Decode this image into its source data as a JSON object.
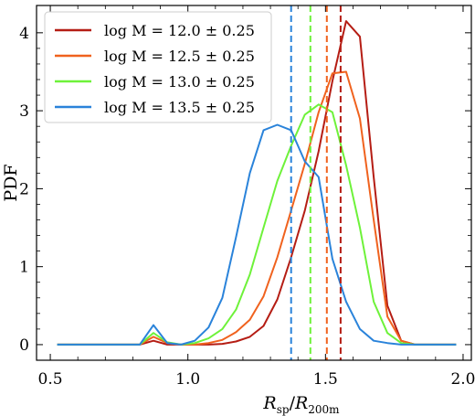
{
  "chart_data": {
    "type": "line",
    "xlabel": "R_sp/R_200m",
    "ylabel": "PDF",
    "xlim": [
      0.45,
      2.03
    ],
    "ylim": [
      -0.2,
      4.35
    ],
    "xticks": [
      0.5,
      1.0,
      1.5,
      2.0
    ],
    "xtick_labels": [
      "0.5",
      "1.0",
      "1.5",
      "2.0"
    ],
    "yticks": [
      0,
      1,
      2,
      3,
      4
    ],
    "ytick_labels": [
      "0",
      "1",
      "2",
      "3",
      "4"
    ],
    "legend_position": "top-left",
    "grid": false,
    "x": [
      0.525,
      0.575,
      0.625,
      0.675,
      0.725,
      0.775,
      0.825,
      0.875,
      0.925,
      0.975,
      1.025,
      1.075,
      1.125,
      1.175,
      1.225,
      1.275,
      1.325,
      1.375,
      1.425,
      1.475,
      1.525,
      1.575,
      1.625,
      1.675,
      1.725,
      1.775,
      1.825,
      1.875,
      1.925,
      1.975
    ],
    "series": [
      {
        "name": "log M = 12.0 ± 0.25",
        "color": "#b51d14",
        "values": [
          0,
          0,
          0,
          0,
          0,
          0,
          0,
          0.05,
          0,
          0,
          0,
          0,
          0.01,
          0.04,
          0.1,
          0.24,
          0.58,
          1.12,
          1.72,
          2.48,
          3.38,
          4.15,
          3.95,
          2.15,
          0.5,
          0.05,
          0,
          0,
          0,
          0
        ],
        "vline": 1.555
      },
      {
        "name": "log M = 12.5 ± 0.25",
        "color": "#f0621e",
        "values": [
          0,
          0,
          0,
          0,
          0,
          0,
          0,
          0.1,
          0.02,
          0,
          0,
          0.02,
          0.06,
          0.16,
          0.32,
          0.62,
          1.12,
          1.72,
          2.32,
          2.98,
          3.48,
          3.5,
          2.9,
          1.6,
          0.36,
          0.05,
          0,
          0,
          0,
          0
        ],
        "vline": 1.505
      },
      {
        "name": "log M = 13.0 ± 0.25",
        "color": "#6ef23a",
        "values": [
          0,
          0,
          0,
          0,
          0,
          0,
          0,
          0.15,
          0.03,
          0,
          0.02,
          0.08,
          0.2,
          0.45,
          0.9,
          1.5,
          2.1,
          2.55,
          2.95,
          3.08,
          2.98,
          2.3,
          1.5,
          0.55,
          0.15,
          0.02,
          0,
          0,
          0,
          0
        ],
        "vline": 1.445
      },
      {
        "name": "log M = 13.5 ± 0.25",
        "color": "#2a83da",
        "values": [
          0,
          0,
          0,
          0,
          0,
          0,
          0,
          0.25,
          0.02,
          0,
          0.05,
          0.22,
          0.6,
          1.38,
          2.2,
          2.75,
          2.82,
          2.75,
          2.35,
          2.15,
          1.1,
          0.55,
          0.2,
          0.05,
          0.02,
          0,
          0,
          0,
          0,
          0
        ],
        "vline": 1.375
      }
    ]
  }
}
